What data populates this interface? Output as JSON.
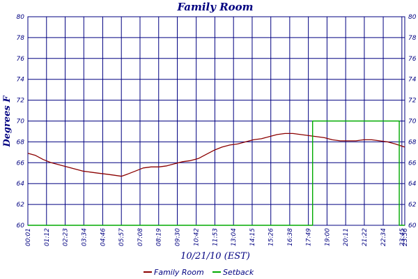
{
  "chart_data": {
    "type": "line",
    "title": "Family Room",
    "xlabel": "10/21/10 (EST)",
    "ylabel": "Degrees F",
    "ylim": [
      60,
      80
    ],
    "y_ticks": [
      "60",
      "62",
      "64",
      "66",
      "68",
      "70",
      "72",
      "74",
      "76",
      "78",
      "80"
    ],
    "x_ticks": [
      "00:01",
      "01:12",
      "02:23",
      "03:34",
      "04:46",
      "05:57",
      "07:08",
      "08:19",
      "09:30",
      "10:42",
      "11:53",
      "13:04",
      "14:15",
      "15:26",
      "16:38",
      "17:49",
      "19:00",
      "20:11",
      "21:22",
      "22:34",
      "23:45",
      "23:56"
    ],
    "x_ticks_display": [
      "00:01",
      "01:12",
      "02:23",
      "03:34",
      "04:46",
      "05:57",
      "07:08",
      "08:19",
      "09:30",
      "10:42",
      "11:53",
      "13:04",
      "14:15",
      "15:26",
      "16:38",
      "17:49",
      "19:00",
      "20:11",
      "21:22",
      "22:34",
      "23:45",
      "23:56"
    ],
    "grid": true,
    "legend_position": "bottom",
    "series": [
      {
        "name": "Family Room",
        "color": "#8b0000",
        "x": [
          "00:01",
          "00:30",
          "01:00",
          "01:30",
          "02:00",
          "02:30",
          "03:00",
          "03:30",
          "04:00",
          "04:30",
          "05:00",
          "05:30",
          "05:57",
          "06:20",
          "06:50",
          "07:20",
          "07:50",
          "08:20",
          "08:50",
          "09:20",
          "09:50",
          "10:20",
          "10:50",
          "11:20",
          "11:50",
          "12:20",
          "12:50",
          "13:20",
          "13:50",
          "14:20",
          "14:50",
          "15:20",
          "15:50",
          "16:20",
          "16:50",
          "17:20",
          "17:50",
          "18:20",
          "18:50",
          "19:20",
          "19:50",
          "20:20",
          "20:50",
          "21:20",
          "21:50",
          "22:20",
          "22:50",
          "23:20",
          "23:56"
        ],
        "y": [
          66.9,
          66.7,
          66.3,
          66.0,
          65.8,
          65.6,
          65.4,
          65.2,
          65.1,
          65.0,
          64.9,
          64.8,
          64.7,
          64.9,
          65.2,
          65.5,
          65.6,
          65.6,
          65.7,
          65.9,
          66.1,
          66.2,
          66.4,
          66.8,
          67.2,
          67.5,
          67.7,
          67.8,
          68.0,
          68.2,
          68.3,
          68.5,
          68.7,
          68.8,
          68.8,
          68.7,
          68.6,
          68.5,
          68.4,
          68.2,
          68.1,
          68.1,
          68.1,
          68.2,
          68.2,
          68.1,
          68.0,
          67.8,
          67.5
        ]
      },
      {
        "name": "Setback",
        "color": "#00aa00",
        "x": [
          "00:01",
          "18:05",
          "18:05",
          "23:35",
          "23:35",
          "23:56"
        ],
        "y": [
          60,
          60,
          70,
          70,
          60,
          60
        ]
      }
    ]
  }
}
